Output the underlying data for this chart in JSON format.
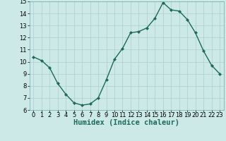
{
  "x": [
    0,
    1,
    2,
    3,
    4,
    5,
    6,
    7,
    8,
    9,
    10,
    11,
    12,
    13,
    14,
    15,
    16,
    17,
    18,
    19,
    20,
    21,
    22,
    23
  ],
  "y": [
    10.4,
    10.1,
    9.5,
    8.2,
    7.3,
    6.6,
    6.4,
    6.5,
    7.0,
    8.5,
    10.2,
    11.1,
    12.4,
    12.5,
    12.8,
    13.6,
    14.9,
    14.3,
    14.2,
    13.5,
    12.4,
    10.9,
    9.7,
    9.0
  ],
  "line_color": "#1a6b5a",
  "marker": "D",
  "marker_size": 2,
  "bg_color": "#cce9e7",
  "grid_color": "#aacfcc",
  "xlabel": "Humidex (Indice chaleur)",
  "xlabel_fontsize": 7.5,
  "xlim": [
    -0.5,
    23.5
  ],
  "ylim": [
    6,
    15
  ],
  "yticks": [
    6,
    7,
    8,
    9,
    10,
    11,
    12,
    13,
    14,
    15
  ],
  "xticks": [
    0,
    1,
    2,
    3,
    4,
    5,
    6,
    7,
    8,
    9,
    10,
    11,
    12,
    13,
    14,
    15,
    16,
    17,
    18,
    19,
    20,
    21,
    22,
    23
  ],
  "tick_fontsize": 6,
  "line_width": 1.0
}
